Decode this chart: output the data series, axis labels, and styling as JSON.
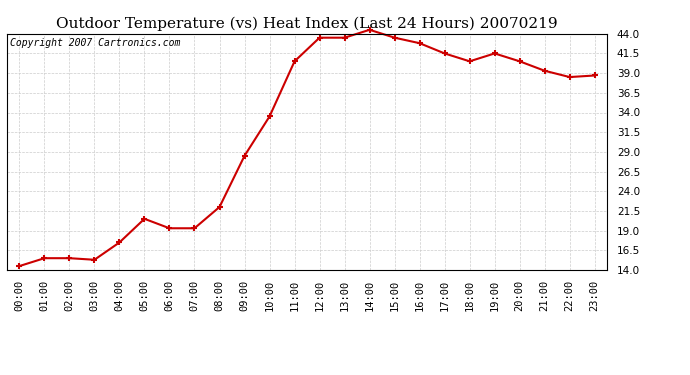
{
  "title": "Outdoor Temperature (vs) Heat Index (Last 24 Hours) 20070219",
  "copyright": "Copyright 2007 Cartronics.com",
  "x_labels": [
    "00:00",
    "01:00",
    "02:00",
    "03:00",
    "04:00",
    "05:00",
    "06:00",
    "07:00",
    "08:00",
    "09:00",
    "10:00",
    "11:00",
    "12:00",
    "13:00",
    "14:00",
    "15:00",
    "16:00",
    "17:00",
    "18:00",
    "19:00",
    "20:00",
    "21:00",
    "22:00",
    "23:00"
  ],
  "y_values": [
    14.5,
    15.5,
    15.5,
    15.3,
    17.5,
    20.5,
    19.3,
    19.3,
    22.0,
    28.5,
    33.5,
    40.5,
    43.5,
    43.5,
    44.5,
    43.5,
    42.8,
    41.5,
    40.5,
    41.5,
    40.5,
    39.3,
    38.5,
    38.7
  ],
  "line_color": "#cc0000",
  "marker": "+",
  "marker_color": "#cc0000",
  "marker_size": 5,
  "line_width": 1.5,
  "ylim": [
    14.0,
    44.0
  ],
  "yticks": [
    14.0,
    16.5,
    19.0,
    21.5,
    24.0,
    26.5,
    29.0,
    31.5,
    34.0,
    36.5,
    39.0,
    41.5,
    44.0
  ],
  "bg_color": "#ffffff",
  "grid_color": "#cccccc",
  "title_fontsize": 11,
  "copyright_fontsize": 7,
  "tick_fontsize": 7.5
}
